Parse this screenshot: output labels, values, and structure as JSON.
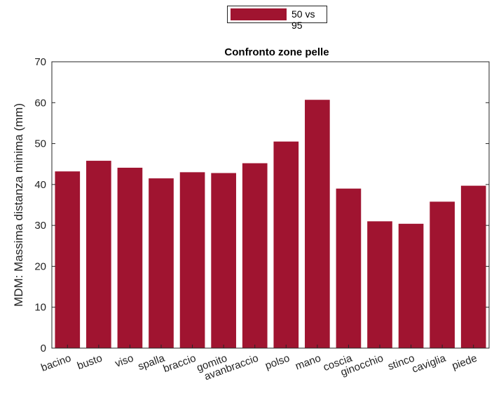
{
  "chart_data": {
    "type": "bar",
    "title": "Confronto zone pelle",
    "xlabel": "",
    "ylabel": "MDM: Massima distanza minima (mm)",
    "ylim": [
      0,
      70
    ],
    "yticks": [
      0,
      10,
      20,
      30,
      40,
      50,
      60,
      70
    ],
    "categories": [
      "bacino",
      "busto",
      "viso",
      "spalla",
      "braccio",
      "gomito",
      "avanbraccio",
      "polso",
      "mano",
      "coscia",
      "ginocchio",
      "stinco",
      "caviglia",
      "piede"
    ],
    "series": [
      {
        "name": "50 vs 95",
        "values": [
          43.2,
          45.8,
          44.1,
          41.5,
          43.0,
          42.8,
          45.2,
          50.5,
          60.7,
          39.0,
          31.0,
          30.4,
          35.8,
          39.7
        ]
      }
    ],
    "bar_color": "#a01430",
    "grid": false,
    "legend": "top-center"
  }
}
